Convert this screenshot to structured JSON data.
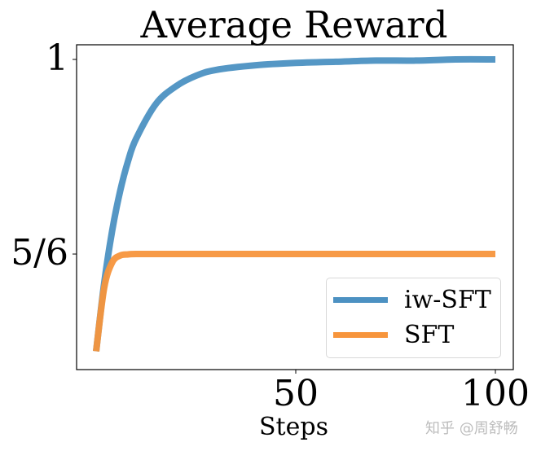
{
  "chart_data": {
    "type": "line",
    "title": "Average Reward",
    "xlabel": "Steps",
    "ylabel": "",
    "x_ticks": [
      50,
      100
    ],
    "x_tick_labels": [
      "50",
      "100"
    ],
    "y_ticks": [
      0.8333,
      1.0
    ],
    "y_tick_labels": [
      "5/6",
      "1"
    ],
    "xlim": [
      -4,
      104
    ],
    "ylim": [
      0.7345,
      1.0125
    ],
    "grid": false,
    "legend_position": "lower right",
    "x": [
      0,
      2,
      4,
      6,
      8,
      10,
      15,
      20,
      25,
      30,
      40,
      50,
      60,
      70,
      80,
      90,
      100
    ],
    "series": [
      {
        "name": "iw-SFT",
        "color": "#4c91c2",
        "values": [
          0.75,
          0.808,
          0.853,
          0.887,
          0.913,
          0.932,
          0.962,
          0.977,
          0.986,
          0.991,
          0.995,
          0.997,
          0.998,
          0.999,
          0.999,
          1.0,
          1.0
        ]
      },
      {
        "name": "SFT",
        "color": "#f7953c",
        "values": [
          0.75,
          0.804,
          0.826,
          0.832,
          0.833,
          0.8333,
          0.8333,
          0.8333,
          0.8333,
          0.8333,
          0.8333,
          0.8333,
          0.8333,
          0.8333,
          0.8333,
          0.8333,
          0.8333
        ]
      }
    ]
  },
  "watermark": "知乎 @周舒畅"
}
